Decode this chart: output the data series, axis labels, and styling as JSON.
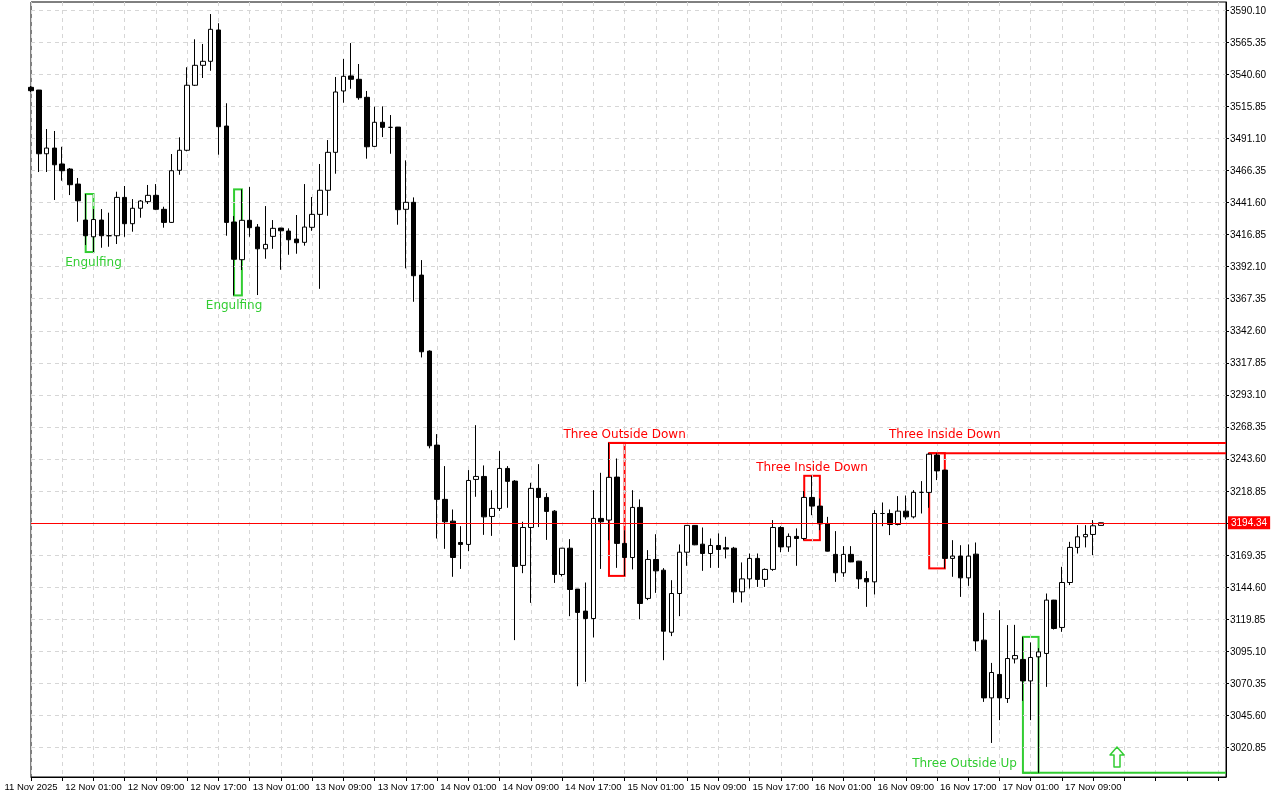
{
  "chart_data": {
    "type": "candlestick",
    "color": "#000000",
    "x": [
      "2025-11-11T17:00",
      "2025-11-11T18:00",
      "2025-11-11T19:00",
      "2025-11-11T20:00",
      "2025-11-11T21:00",
      "2025-11-11T22:00",
      "2025-11-11T23:00",
      "2025-11-12T00:00",
      "2025-11-12T01:00",
      "2025-11-12T02:00",
      "2025-11-12T03:00",
      "2025-11-12T04:00",
      "2025-11-12T05:00",
      "2025-11-12T06:00",
      "2025-11-12T07:00",
      "2025-11-12T08:00",
      "2025-11-12T09:00",
      "2025-11-12T10:00",
      "2025-11-12T11:00",
      "2025-11-12T12:00",
      "2025-11-12T13:00",
      "2025-11-12T14:00",
      "2025-11-12T15:00",
      "2025-11-12T16:00",
      "2025-11-12T17:00",
      "2025-11-12T18:00",
      "2025-11-12T19:00",
      "2025-11-12T20:00",
      "2025-11-12T21:00",
      "2025-11-12T22:00",
      "2025-11-12T23:00",
      "2025-11-13T00:00",
      "2025-11-13T01:00",
      "2025-11-13T02:00",
      "2025-11-13T03:00",
      "2025-11-13T04:00",
      "2025-11-13T05:00",
      "2025-11-13T06:00",
      "2025-11-13T07:00",
      "2025-11-13T08:00",
      "2025-11-13T09:00",
      "2025-11-13T10:00",
      "2025-11-13T11:00",
      "2025-11-13T12:00",
      "2025-11-13T13:00",
      "2025-11-13T14:00",
      "2025-11-13T15:00",
      "2025-11-13T16:00",
      "2025-11-13T17:00",
      "2025-11-13T18:00",
      "2025-11-13T19:00",
      "2025-11-13T20:00",
      "2025-11-13T21:00",
      "2025-11-13T22:00",
      "2025-11-13T23:00",
      "2025-11-14T00:00",
      "2025-11-14T01:00",
      "2025-11-14T02:00",
      "2025-11-14T03:00",
      "2025-11-14T04:00",
      "2025-11-14T05:00",
      "2025-11-14T06:00",
      "2025-11-14T07:00",
      "2025-11-14T08:00",
      "2025-11-14T09:00",
      "2025-11-14T10:00",
      "2025-11-14T11:00",
      "2025-11-14T12:00",
      "2025-11-14T13:00",
      "2025-11-14T14:00",
      "2025-11-14T15:00",
      "2025-11-14T16:00",
      "2025-11-14T17:00",
      "2025-11-14T18:00",
      "2025-11-14T19:00",
      "2025-11-14T20:00",
      "2025-11-14T21:00",
      "2025-11-14T22:00",
      "2025-11-14T23:00",
      "2025-11-15T00:00",
      "2025-11-15T01:00",
      "2025-11-15T02:00",
      "2025-11-15T03:00",
      "2025-11-15T04:00",
      "2025-11-15T05:00",
      "2025-11-15T06:00",
      "2025-11-15T07:00",
      "2025-11-15T08:00",
      "2025-11-15T09:00",
      "2025-11-15T10:00",
      "2025-11-15T11:00",
      "2025-11-15T12:00",
      "2025-11-15T13:00",
      "2025-11-15T14:00",
      "2025-11-15T15:00",
      "2025-11-15T16:00",
      "2025-11-15T17:00",
      "2025-11-15T18:00",
      "2025-11-15T19:00",
      "2025-11-15T20:00",
      "2025-11-15T21:00",
      "2025-11-15T22:00",
      "2025-11-15T23:00",
      "2025-11-16T00:00",
      "2025-11-16T01:00",
      "2025-11-16T02:00",
      "2025-11-16T03:00",
      "2025-11-16T04:00",
      "2025-11-16T05:00",
      "2025-11-16T06:00",
      "2025-11-16T07:00",
      "2025-11-16T08:00",
      "2025-11-16T09:00",
      "2025-11-16T10:00",
      "2025-11-16T11:00",
      "2025-11-16T12:00",
      "2025-11-16T13:00",
      "2025-11-16T14:00",
      "2025-11-16T15:00",
      "2025-11-16T16:00",
      "2025-11-16T17:00",
      "2025-11-16T18:00",
      "2025-11-16T19:00",
      "2025-11-16T20:00",
      "2025-11-16T21:00",
      "2025-11-16T22:00",
      "2025-11-16T23:00",
      "2025-11-17T00:00",
      "2025-11-17T01:00",
      "2025-11-17T02:00",
      "2025-11-17T03:00",
      "2025-11-17T04:00",
      "2025-11-17T05:00",
      "2025-11-17T06:00",
      "2025-11-17T07:00",
      "2025-11-17T08:00",
      "2025-11-17T09:00",
      "2025-11-17T10:00"
    ],
    "ohlc": [
      [
        3530.6,
        3531.6,
        3527.0,
        3528.0
      ],
      [
        3528.5,
        3528.6,
        3465.2,
        3479.3
      ],
      [
        3479.3,
        3498.4,
        3465.2,
        3483.7
      ],
      [
        3483.7,
        3496.9,
        3443.6,
        3470.8
      ],
      [
        3471.4,
        3484.7,
        3458.5,
        3466.2
      ],
      [
        3467.5,
        3468.3,
        3447.4,
        3455.4
      ],
      [
        3455.9,
        3460.6,
        3426.8,
        3443.0
      ],
      [
        3428.1,
        3448.2,
        3408.8,
        3416.0
      ],
      [
        3415.2,
        3436.6,
        3403.4,
        3428.5
      ],
      [
        3428.1,
        3436.6,
        3406.7,
        3416.0
      ],
      [
        3416.0,
        3433.8,
        3407.5,
        3416.0
      ],
      [
        3416.0,
        3450.0,
        3409.6,
        3445.6
      ],
      [
        3445.6,
        3454.4,
        3415.2,
        3425.3
      ],
      [
        3425.3,
        3444.3,
        3419.1,
        3437.2
      ],
      [
        3437.2,
        3443.6,
        3429.9,
        3442.8
      ],
      [
        3442.3,
        3455.2,
        3440.5,
        3447.2
      ],
      [
        3447.2,
        3455.9,
        3435.8,
        3436.4
      ],
      [
        3436.4,
        3438.4,
        3422.2,
        3426.3
      ],
      [
        3426.3,
        3479.1,
        3425.9,
        3466.2
      ],
      [
        3466.5,
        3492.0,
        3463.1,
        3482.0
      ],
      [
        3482.0,
        3546.1,
        3481.2,
        3532.2
      ],
      [
        3532.2,
        3567.7,
        3531.6,
        3547.6
      ],
      [
        3547.6,
        3564.1,
        3537.8,
        3550.7
      ],
      [
        3550.7,
        3587.2,
        3543.4,
        3575.4
      ],
      [
        3574.9,
        3580.1,
        3478.6,
        3500.2
      ],
      [
        3500.7,
        3518.3,
        3416.0,
        3426.3
      ],
      [
        3426.6,
        3431.2,
        3369.9,
        3397.8
      ],
      [
        3397.5,
        3451.8,
        3389.5,
        3427.9
      ],
      [
        3427.9,
        3453.6,
        3415.2,
        3422.2
      ],
      [
        3422.7,
        3425.0,
        3370.2,
        3405.9
      ],
      [
        3405.9,
        3438.9,
        3398.2,
        3409.3
      ],
      [
        3415.5,
        3428.1,
        3405.9,
        3421.7
      ],
      [
        3421.9,
        3422.1,
        3389.7,
        3419.8
      ],
      [
        3419.6,
        3421.7,
        3401.3,
        3412.9
      ],
      [
        3413.4,
        3432.0,
        3402.1,
        3410.6
      ],
      [
        3410.9,
        3455.9,
        3408.3,
        3422.7
      ],
      [
        3422.5,
        3445.9,
        3419.8,
        3432.5
      ],
      [
        3432.5,
        3471.4,
        3375.0,
        3451.1
      ],
      [
        3451.1,
        3489.9,
        3431.4,
        3480.4
      ],
      [
        3480.4,
        3538.6,
        3463.9,
        3527.0
      ],
      [
        3527.8,
        3552.5,
        3518.7,
        3539.1
      ],
      [
        3539.4,
        3564.8,
        3529.5,
        3536.8
      ],
      [
        3536.8,
        3548.6,
        3521.0,
        3522.6
      ],
      [
        3522.9,
        3527.8,
        3475.5,
        3484.7
      ],
      [
        3485.0,
        3515.6,
        3484.7,
        3503.6
      ],
      [
        3503.6,
        3515.9,
        3492.2,
        3499.7
      ],
      [
        3499.7,
        3509.2,
        3479.3,
        3499.7
      ],
      [
        3499.9,
        3500.0,
        3424.5,
        3436.1
      ],
      [
        3436.4,
        3474.2,
        3390.8,
        3441.8
      ],
      [
        3441.8,
        3445.6,
        3365.0,
        3385.1
      ],
      [
        3385.6,
        3397.2,
        3322.0,
        3326.4
      ],
      [
        3326.9,
        3327.5,
        3251.8,
        3253.8
      ],
      [
        3254.3,
        3262.8,
        3182.2,
        3212.4
      ],
      [
        3212.4,
        3238.1,
        3174.2,
        3195.1
      ],
      [
        3195.6,
        3204.6,
        3152.6,
        3167.5
      ],
      [
        3179.1,
        3191.7,
        3158.7,
        3177.6
      ],
      [
        3177.6,
        3235.0,
        3172.4,
        3227.0
      ],
      [
        3227.8,
        3269.7,
        3214.4,
        3230.1
      ],
      [
        3230.1,
        3238.6,
        3185.0,
        3198.9
      ],
      [
        3199.2,
        3219.5,
        3184.2,
        3205.4
      ],
      [
        3205.4,
        3249.7,
        3203.5,
        3236.3
      ],
      [
        3236.3,
        3238.1,
        3205.9,
        3226.3
      ],
      [
        3226.5,
        3227.3,
        3103.7,
        3160.6
      ],
      [
        3161.4,
        3195.1,
        3155.4,
        3190.7
      ],
      [
        3190.7,
        3225.2,
        3132.5,
        3220.9
      ],
      [
        3220.9,
        3239.6,
        3191.0,
        3213.9
      ],
      [
        3213.9,
        3217.2,
        3181.1,
        3203.1
      ],
      [
        3203.3,
        3204.1,
        3147.9,
        3154.4
      ],
      [
        3154.4,
        3174.9,
        3152.9,
        3174.7
      ],
      [
        3174.7,
        3181.7,
        3122.2,
        3142.8
      ],
      [
        3143.1,
        3143.2,
        3068.1,
        3125.1
      ],
      [
        3126.1,
        3148.2,
        3071.5,
        3120.4
      ],
      [
        3120.4,
        3219.5,
        3105.8,
        3197.7
      ],
      [
        3197.7,
        3232.9,
        3158.7,
        3195.1
      ],
      [
        3196.4,
        3256.0,
        3180.9,
        3229.4
      ],
      [
        3229.6,
        3244.0,
        3159.5,
        3178.4
      ],
      [
        3178.4,
        3188.6,
        3153.3,
        3167.5
      ],
      [
        3167.5,
        3219.5,
        3158.3,
        3206.2
      ],
      [
        3206.2,
        3212.4,
        3119.9,
        3132.0
      ],
      [
        3135.9,
        3173.2,
        3134.6,
        3166.0
      ],
      [
        3166.0,
        3185.5,
        3140.2,
        3157.2
      ],
      [
        3157.7,
        3159.3,
        3088.2,
        3110.6
      ],
      [
        3109.8,
        3150.0,
        3106.8,
        3139.7
      ],
      [
        3139.7,
        3177.6,
        3122.2,
        3171.6
      ],
      [
        3171.6,
        3192.5,
        3161.1,
        3192.3
      ],
      [
        3192.3,
        3192.5,
        3177.0,
        3177.3
      ],
      [
        3177.8,
        3190.7,
        3157.2,
        3170.6
      ],
      [
        3170.6,
        3182.2,
        3159.5,
        3176.8
      ],
      [
        3176.8,
        3186.1,
        3159.5,
        3173.7
      ],
      [
        3175.0,
        3183.5,
        3166.8,
        3174.0
      ],
      [
        3174.7,
        3175.7,
        3132.5,
        3141.0
      ],
      [
        3141.0,
        3163.7,
        3132.8,
        3151.0
      ],
      [
        3151.0,
        3170.6,
        3143.6,
        3166.8
      ],
      [
        3166.8,
        3170.6,
        3144.8,
        3150.6
      ],
      [
        3150.6,
        3159.1,
        3144.8,
        3158.3
      ],
      [
        3158.3,
        3196.4,
        3157.2,
        3190.7
      ],
      [
        3190.7,
        3191.7,
        3171.6,
        3175.7
      ],
      [
        3175.7,
        3186.1,
        3171.9,
        3183.8
      ],
      [
        3183.8,
        3190.0,
        3161.1,
        3182.2
      ],
      [
        3182.2,
        3218.8,
        3180.9,
        3213.9
      ],
      [
        3213.9,
        3230.6,
        3200.2,
        3207.2
      ],
      [
        3207.2,
        3213.1,
        3188.6,
        3193.5
      ],
      [
        3193.8,
        3198.9,
        3172.2,
        3172.4
      ],
      [
        3169.9,
        3187.9,
        3148.7,
        3155.7
      ],
      [
        3155.7,
        3176.3,
        3152.6,
        3169.9
      ],
      [
        3169.9,
        3176.3,
        3163.9,
        3164.1
      ],
      [
        3164.7,
        3164.9,
        3143.3,
        3151.0
      ],
      [
        3151.3,
        3157.0,
        3129.4,
        3148.7
      ],
      [
        3148.7,
        3204.1,
        3139.0,
        3201.5
      ],
      [
        3201.5,
        3210.0,
        3191.7,
        3201.5
      ],
      [
        3201.5,
        3204.6,
        3184.8,
        3193.0
      ],
      [
        3193.0,
        3214.9,
        3192.3,
        3203.3
      ],
      [
        3203.3,
        3215.4,
        3196.9,
        3198.9
      ],
      [
        3198.9,
        3219.5,
        3197.7,
        3217.8
      ],
      [
        3217.8,
        3226.5,
        3201.5,
        3217.8
      ],
      [
        3217.8,
        3248.1,
        3205.9,
        3247.3
      ],
      [
        3246.6,
        3247.9,
        3227.3,
        3234.4
      ],
      [
        3235.0,
        3235.2,
        3159.1,
        3166.8
      ],
      [
        3166.8,
        3180.9,
        3152.6,
        3168.6
      ],
      [
        3168.6,
        3177.0,
        3137.1,
        3151.8
      ],
      [
        3151.8,
        3177.6,
        3145.6,
        3168.6
      ],
      [
        3170.1,
        3179.1,
        3095.4,
        3103.1
      ],
      [
        3103.7,
        3124.8,
        3056.0,
        3059.1
      ],
      [
        3059.1,
        3086.1,
        3024.3,
        3078.7
      ],
      [
        3077.2,
        3126.8,
        3041.9,
        3059.1
      ],
      [
        3058.6,
        3115.3,
        3055.2,
        3089.5
      ],
      [
        3089.2,
        3115.5,
        3085.7,
        3091.8
      ],
      [
        3088.8,
        3106.2,
        3056.8,
        3072.2
      ],
      [
        3072.2,
        3101.9,
        3041.9,
        3090.3
      ],
      [
        3090.8,
        3097.5,
        3001.2,
        3094.6
      ],
      [
        3093.4,
        3139.7,
        3067.6,
        3134.6
      ],
      [
        3134.6,
        3134.8,
        3111.9,
        3112.7
      ],
      [
        3113.5,
        3160.3,
        3110.1,
        3148.2
      ],
      [
        3148.2,
        3179.6,
        3146.2,
        3175.3
      ],
      [
        3175.3,
        3192.5,
        3170.6,
        3183.5
      ],
      [
        3183.5,
        3192.5,
        3175.3,
        3185.3
      ],
      [
        3185.3,
        3196.4,
        3169.3,
        3192.0
      ],
      [
        3192.3,
        3194.5,
        3192.2,
        3194.34
      ]
    ],
    "series": [
      {
        "type": "line",
        "color": "#ff0000",
        "x": [
          "2025-11-14T19:00",
          "2025-11-18T02:00"
        ],
        "values": [
          3256.0,
          3256.0
        ]
      },
      {
        "type": "line",
        "color": "#ff0000",
        "x": [
          "2025-11-16T12:00",
          "2025-11-18T02:00"
        ],
        "values": [
          3248.1,
          3248.1
        ]
      },
      {
        "type": "line",
        "color": "#32cd32",
        "x": [
          "2025-11-17T00:00",
          "2025-11-18T02:00"
        ],
        "values": [
          3001.2,
          3001.2
        ]
      }
    ],
    "xlim": [
      "2025-11-11T17:00",
      "2025-11-18T02:00"
    ],
    "xticks": [
      {
        "value": "2025-11-11T17:00",
        "label": "11 Nov 2025"
      },
      {
        "value": "2025-11-11T21:00",
        "label": null
      },
      {
        "value": "2025-11-12T01:00",
        "label": "12 Nov 01:00"
      },
      {
        "value": "2025-11-12T05:00",
        "label": null
      },
      {
        "value": "2025-11-12T09:00",
        "label": "12 Nov 09:00"
      },
      {
        "value": "2025-11-12T13:00",
        "label": null
      },
      {
        "value": "2025-11-12T17:00",
        "label": "12 Nov 17:00"
      },
      {
        "value": "2025-11-12T21:00",
        "label": null
      },
      {
        "value": "2025-11-13T01:00",
        "label": "13 Nov 01:00"
      },
      {
        "value": "2025-11-13T05:00",
        "label": null
      },
      {
        "value": "2025-11-13T09:00",
        "label": "13 Nov 09:00"
      },
      {
        "value": "2025-11-13T13:00",
        "label": null
      },
      {
        "value": "2025-11-13T17:00",
        "label": "13 Nov 17:00"
      },
      {
        "value": "2025-11-13T21:00",
        "label": null
      },
      {
        "value": "2025-11-14T01:00",
        "label": "14 Nov 01:00"
      },
      {
        "value": "2025-11-14T05:00",
        "label": null
      },
      {
        "value": "2025-11-14T09:00",
        "label": "14 Nov 09:00"
      },
      {
        "value": "2025-11-14T13:00",
        "label": null
      },
      {
        "value": "2025-11-14T17:00",
        "label": "14 Nov 17:00"
      },
      {
        "value": "2025-11-14T21:00",
        "label": null
      },
      {
        "value": "2025-11-15T01:00",
        "label": "15 Nov 01:00"
      },
      {
        "value": "2025-11-15T05:00",
        "label": null
      },
      {
        "value": "2025-11-15T09:00",
        "label": "15 Nov 09:00"
      },
      {
        "value": "2025-11-15T13:00",
        "label": null
      },
      {
        "value": "2025-11-15T17:00",
        "label": "15 Nov 17:00"
      },
      {
        "value": "2025-11-15T21:00",
        "label": null
      },
      {
        "value": "2025-11-16T01:00",
        "label": "16 Nov 01:00"
      },
      {
        "value": "2025-11-16T05:00",
        "label": null
      },
      {
        "value": "2025-11-16T09:00",
        "label": "16 Nov 09:00"
      },
      {
        "value": "2025-11-16T13:00",
        "label": null
      },
      {
        "value": "2025-11-16T17:00",
        "label": "16 Nov 17:00"
      },
      {
        "value": "2025-11-16T21:00",
        "label": null
      },
      {
        "value": "2025-11-17T01:00",
        "label": "17 Nov 01:00"
      },
      {
        "value": "2025-11-17T05:00",
        "label": null
      },
      {
        "value": "2025-11-17T09:00",
        "label": "17 Nov 09:00"
      },
      {
        "value": "2025-11-17T13:00",
        "label": null
      },
      {
        "value": "2025-11-17T17:00",
        "label": null
      },
      {
        "value": "2025-11-17T21:00",
        "label": null
      },
      {
        "value": "2025-11-18T01:00",
        "label": null
      }
    ],
    "ylim": [
      2998.0,
      3596.5
    ],
    "yticks": [
      {
        "value": 3590.1,
        "label": "3590.10"
      },
      3565.35,
      {
        "value": 3540.6,
        "label": "3540.60"
      },
      3515.85,
      {
        "value": 3491.1,
        "label": "3491.10"
      },
      3466.35,
      {
        "value": 3441.6,
        "label": "3441.60"
      },
      3416.85,
      {
        "value": 3392.1,
        "label": "3392.10"
      },
      3367.35,
      {
        "value": 3342.6,
        "label": "3342.60"
      },
      3317.85,
      {
        "value": 3293.1,
        "label": "3293.10"
      },
      3268.35,
      {
        "value": 3243.6,
        "label": "3243.60"
      },
      3218.85,
      {
        "value": 3194.1,
        "label": null
      },
      3169.35,
      {
        "value": 3144.6,
        "label": "3144.60"
      },
      3119.85,
      {
        "value": 3095.1,
        "label": "3095.10"
      },
      3070.35,
      {
        "value": 3045.6,
        "label": "3045.60"
      },
      3020.85
    ],
    "ref_lines": [
      {
        "axis": "y",
        "value": 3194.34,
        "label": "3194.34",
        "color": "#ff0000"
      }
    ],
    "annotations": [
      {
        "text": "Engulfing",
        "x": "2025-11-12T01:00",
        "y": 3403.4
      },
      {
        "text": "Engulfing",
        "x": "2025-11-12T19:00",
        "y": 3369.9
      },
      {
        "text": "Three Outside Down",
        "x": "2025-11-14T21:00",
        "y": 3256.0
      },
      {
        "text": "Three Inside Down",
        "x": "2025-11-15T21:00",
        "y": 3230.6
      },
      {
        "text": "Three Inside Down",
        "x": "2025-11-16T14:00",
        "y": 3248.1
      },
      {
        "text": "Three Outside Up",
        "x": "2025-11-17T00:00",
        "y": 3001.2
      }
    ],
    "grid": true,
    "marker": "none"
  }
}
